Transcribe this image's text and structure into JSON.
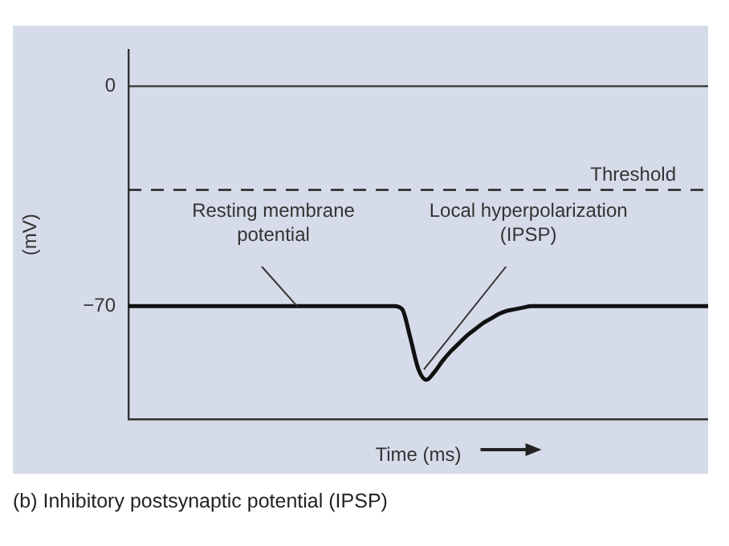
{
  "chart_data": {
    "type": "line",
    "xlabel": "Time (ms)",
    "ylabel": "(mV)",
    "categories": [
      null,
      null,
      null,
      null,
      null,
      null,
      null,
      null,
      null,
      null,
      null,
      null,
      null,
      null,
      null,
      null,
      null,
      null,
      null,
      null,
      null,
      null,
      null,
      null,
      null,
      null,
      null,
      null,
      null,
      null,
      null,
      null,
      null,
      null,
      null,
      null,
      null,
      null,
      null,
      null,
      null,
      null,
      null,
      null,
      null,
      null,
      null,
      null,
      null,
      null,
      null,
      null,
      null,
      null,
      null,
      null,
      null,
      null,
      null,
      null,
      null,
      null,
      null,
      null,
      null,
      null,
      null,
      null,
      null,
      null,
      null,
      null,
      null
    ],
    "series": [
      {
        "color": "#111111",
        "values": [
          -70,
          -70,
          -70,
          -70,
          -70,
          -70,
          -70,
          -70,
          -70,
          -70,
          -70,
          -70,
          -70,
          -70,
          -70,
          -70,
          -70,
          -70,
          -70,
          -70,
          -70,
          -70,
          -70,
          -70,
          -70,
          -70,
          -70,
          -70,
          -70,
          -70,
          -70,
          -70,
          -70,
          -70,
          -71,
          -80,
          -90,
          -93.5,
          -91,
          -87.5,
          -84.5,
          -82,
          -79.5,
          -77.5,
          -75.5,
          -74,
          -72.5,
          -71.5,
          -71,
          -70.5,
          -70,
          -70,
          -70,
          -70,
          -70,
          -70,
          -70,
          -70,
          -70,
          -70,
          -70,
          -70,
          -70,
          -70,
          -70,
          -70,
          -70,
          -70,
          -70,
          -70,
          -70,
          -70,
          -70
        ]
      }
    ],
    "ylim": [
      -106,
      11.5
    ],
    "yticks": [
      0,
      -70
    ],
    "tick_labels": "y",
    "grid": false,
    "legend": false,
    "marker": "none",
    "line_style": "solid",
    "ref_lines": [
      {
        "axis": "y",
        "value": 0,
        "color": "#333333",
        "line_style": "solid"
      },
      {
        "axis": "y",
        "value": -33,
        "label": "Threshold",
        "color": "#222222",
        "line_style": "dashed"
      }
    ],
    "annotations": [
      "Resting membrane potential",
      "Local hyperpolarization (IPSP)",
      "(b) Inhibitory postsynaptic potential (IPSP)"
    ]
  }
}
